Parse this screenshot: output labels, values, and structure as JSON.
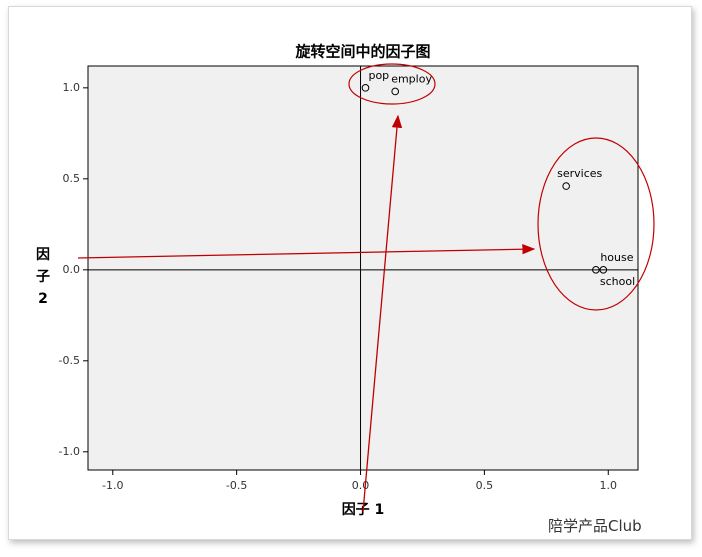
{
  "chart_data": {
    "type": "scatter",
    "title": "旋转空间中的因子图",
    "x_label": "因子 1",
    "y_label": "因子 2",
    "labels": [
      "pop",
      "employ",
      "services",
      "house",
      "school"
    ],
    "x": [
      0.02,
      0.14,
      0.83,
      0.98,
      0.95
    ],
    "values": [
      1.0,
      0.98,
      0.46,
      0.0,
      0.0
    ],
    "xlim": [
      -1.1,
      1.12
    ],
    "ylim": [
      -1.1,
      1.12
    ],
    "xticks": [
      {
        "value": -1,
        "label": "-1.0"
      },
      {
        "value": -0.5,
        "label": "-0.5"
      },
      {
        "value": 0,
        "label": "0.0"
      },
      {
        "value": 0.5,
        "label": "0.5"
      },
      {
        "value": 1,
        "label": "1.0"
      }
    ],
    "yticks": [
      {
        "value": -1,
        "label": "-1.0"
      },
      {
        "value": -0.5,
        "label": "-0.5"
      },
      {
        "value": 0,
        "label": "0.0"
      },
      {
        "value": 0.5,
        "label": "0.5"
      },
      {
        "value": 1,
        "label": "1.0"
      }
    ]
  },
  "watermark": "陪学产品Club"
}
